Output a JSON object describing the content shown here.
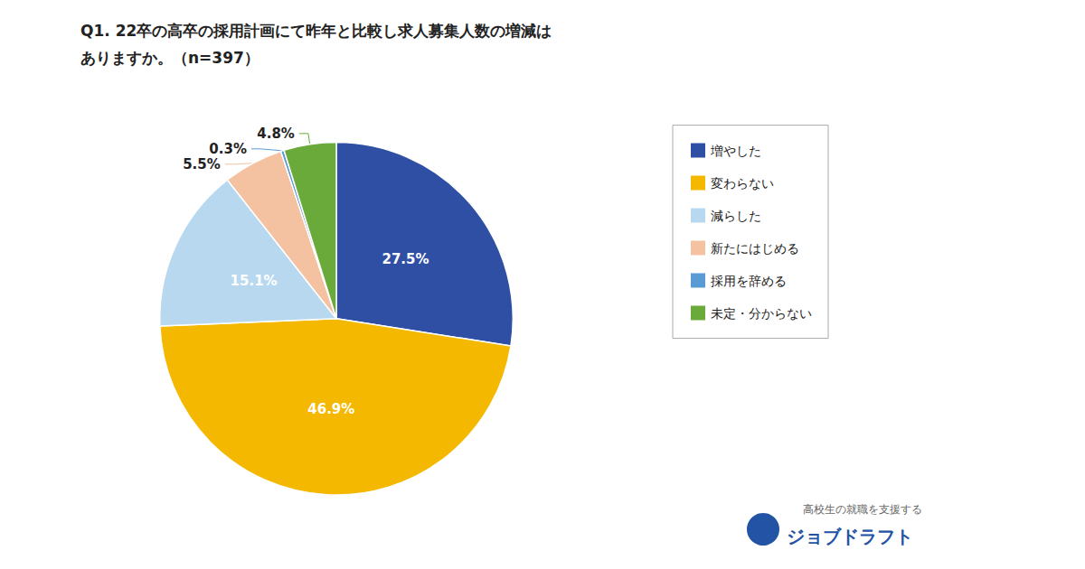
{
  "chart_data": {
    "type": "pie",
    "title": "Q1. 22卒の高卒の採用計画にて昨年と比較し求人募集人数の増減は\nありますか。（n=397）",
    "categories": [
      "増やした",
      "変わらない",
      "減らした",
      "新たにはじめる",
      "採用を辞める",
      "未定・分からない"
    ],
    "values": [
      27.5,
      46.9,
      15.1,
      5.5,
      0.3,
      4.8
    ],
    "value_labels": [
      "27.5%",
      "46.9%",
      "15.1%",
      "5.5%",
      "0.3%",
      "4.8%"
    ],
    "colors": [
      "#2e4fa3",
      "#f5b800",
      "#b8d8f0",
      "#f4c2a1",
      "#5b9bd5",
      "#6aaa3a"
    ],
    "data_labels": true,
    "legend": "right",
    "annotations": [
      "高校生の就職を支援する",
      "ジョブドラフト"
    ]
  }
}
